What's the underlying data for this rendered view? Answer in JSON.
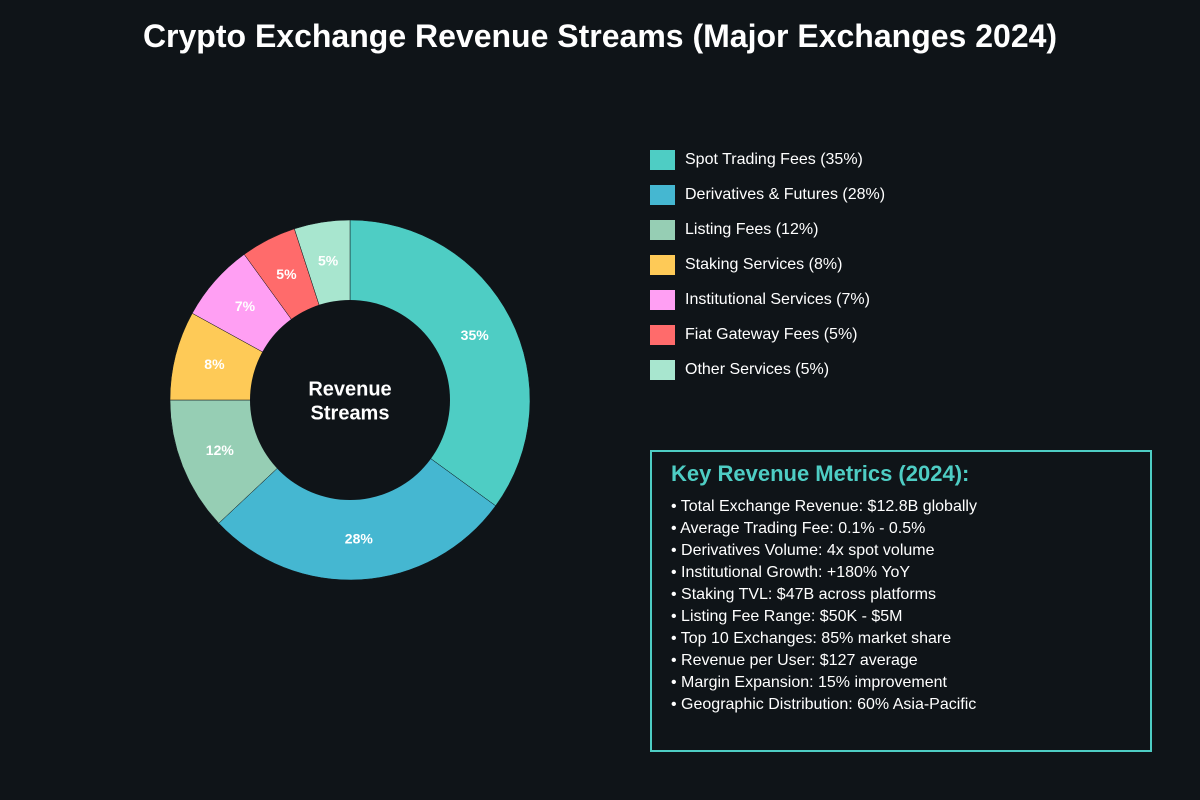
{
  "title": "Crypto Exchange Revenue Streams (Major Exchanges 2024)",
  "colors": {
    "background": "#0f1418",
    "accent": "#4ecdc4",
    "text": "#ffffff"
  },
  "chart_data": {
    "type": "pie",
    "variant": "donut",
    "title": "Crypto Exchange Revenue Streams (Major Exchanges 2024)",
    "center_label": [
      "Revenue",
      "Streams"
    ],
    "units": "%",
    "slices": [
      {
        "label": "Spot Trading Fees",
        "value": 35,
        "display": "35%",
        "legend": "Spot Trading Fees (35%)",
        "color": "#4ecdc4"
      },
      {
        "label": "Derivatives & Futures",
        "value": 28,
        "display": "28%",
        "legend": "Derivatives & Futures (28%)",
        "color": "#45b7d1"
      },
      {
        "label": "Listing Fees",
        "value": 12,
        "display": "12%",
        "legend": "Listing Fees (12%)",
        "color": "#96ceb4"
      },
      {
        "label": "Staking Services",
        "value": 8,
        "display": "8%",
        "legend": "Staking Services (8%)",
        "color": "#feca57"
      },
      {
        "label": "Institutional Services",
        "value": 7,
        "display": "7%",
        "legend": "Institutional Services (7%)",
        "color": "#ff9ff3"
      },
      {
        "label": "Fiat Gateway Fees",
        "value": 5,
        "display": "5%",
        "legend": "Fiat Gateway Fees (5%)",
        "color": "#ff6b6b"
      },
      {
        "label": "Other Services",
        "value": 5,
        "display": "5%",
        "legend": "Other Services (5%)",
        "color": "#a8e6cf"
      }
    ],
    "legend_placement": "right"
  },
  "metrics": {
    "title": "Key Revenue Metrics (2024):",
    "items": [
      "• Total Exchange Revenue: $12.8B globally",
      "• Average Trading Fee: 0.1% - 0.5%",
      "• Derivatives Volume: 4x spot volume",
      "• Institutional Growth: +180% YoY",
      "• Staking TVL: $47B across platforms",
      "• Listing Fee Range: $50K - $5M",
      "• Top 10 Exchanges: 85% market share",
      "• Revenue per User: $127 average",
      "• Margin Expansion: 15% improvement",
      "• Geographic Distribution: 60% Asia-Pacific"
    ]
  }
}
